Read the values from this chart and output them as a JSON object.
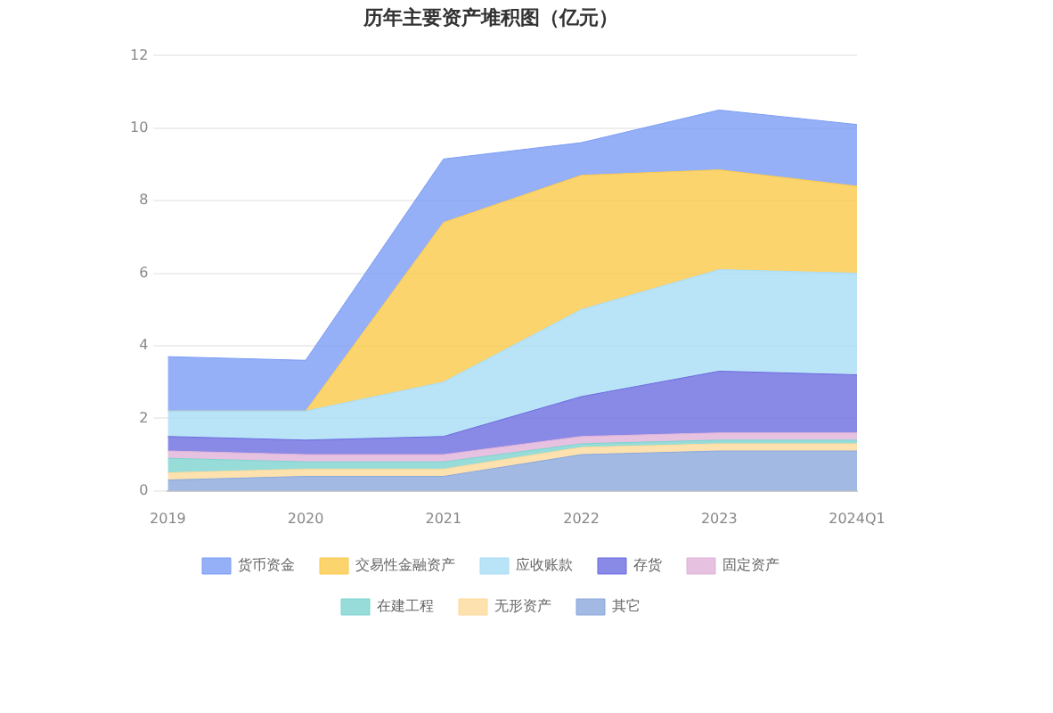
{
  "chart_data": {
    "type": "area",
    "title": "历年主要资产堆积图（亿元）",
    "stacked": true,
    "categories": [
      "2019",
      "2020",
      "2021",
      "2022",
      "2023",
      "2024Q1"
    ],
    "series": [
      {
        "name": "其它",
        "color": "#8aa8dc",
        "values": [
          0.3,
          0.4,
          0.4,
          1.0,
          1.1,
          1.1
        ]
      },
      {
        "name": "无形资产",
        "color": "#fcd99a",
        "values": [
          0.2,
          0.2,
          0.2,
          0.2,
          0.2,
          0.2
        ]
      },
      {
        "name": "在建工程",
        "color": "#7dd3cf",
        "values": [
          0.4,
          0.2,
          0.2,
          0.1,
          0.1,
          0.1
        ]
      },
      {
        "name": "固定资产",
        "color": "#e0b2d8",
        "values": [
          0.2,
          0.2,
          0.2,
          0.2,
          0.2,
          0.2
        ]
      },
      {
        "name": "存货",
        "color": "#6b6be0",
        "values": [
          0.4,
          0.4,
          0.5,
          1.1,
          1.7,
          1.6
        ]
      },
      {
        "name": "应收账款",
        "color": "#a8dcf5",
        "values": [
          0.7,
          0.8,
          1.5,
          2.4,
          2.8,
          2.8
        ]
      },
      {
        "name": "交易性金融资产",
        "color": "#fbc94a",
        "values": [
          0,
          0,
          4.4,
          3.7,
          2.75,
          2.4
        ]
      },
      {
        "name": "货币资金",
        "color": "#7b9cf4",
        "values": [
          1.5,
          1.4,
          1.75,
          0.9,
          1.65,
          1.7
        ]
      }
    ],
    "ylim": [
      0,
      12
    ],
    "yticks": [
      0,
      2,
      4,
      6,
      8,
      10,
      12
    ],
    "grid": "y",
    "legend": "bottom",
    "marker": "none"
  }
}
